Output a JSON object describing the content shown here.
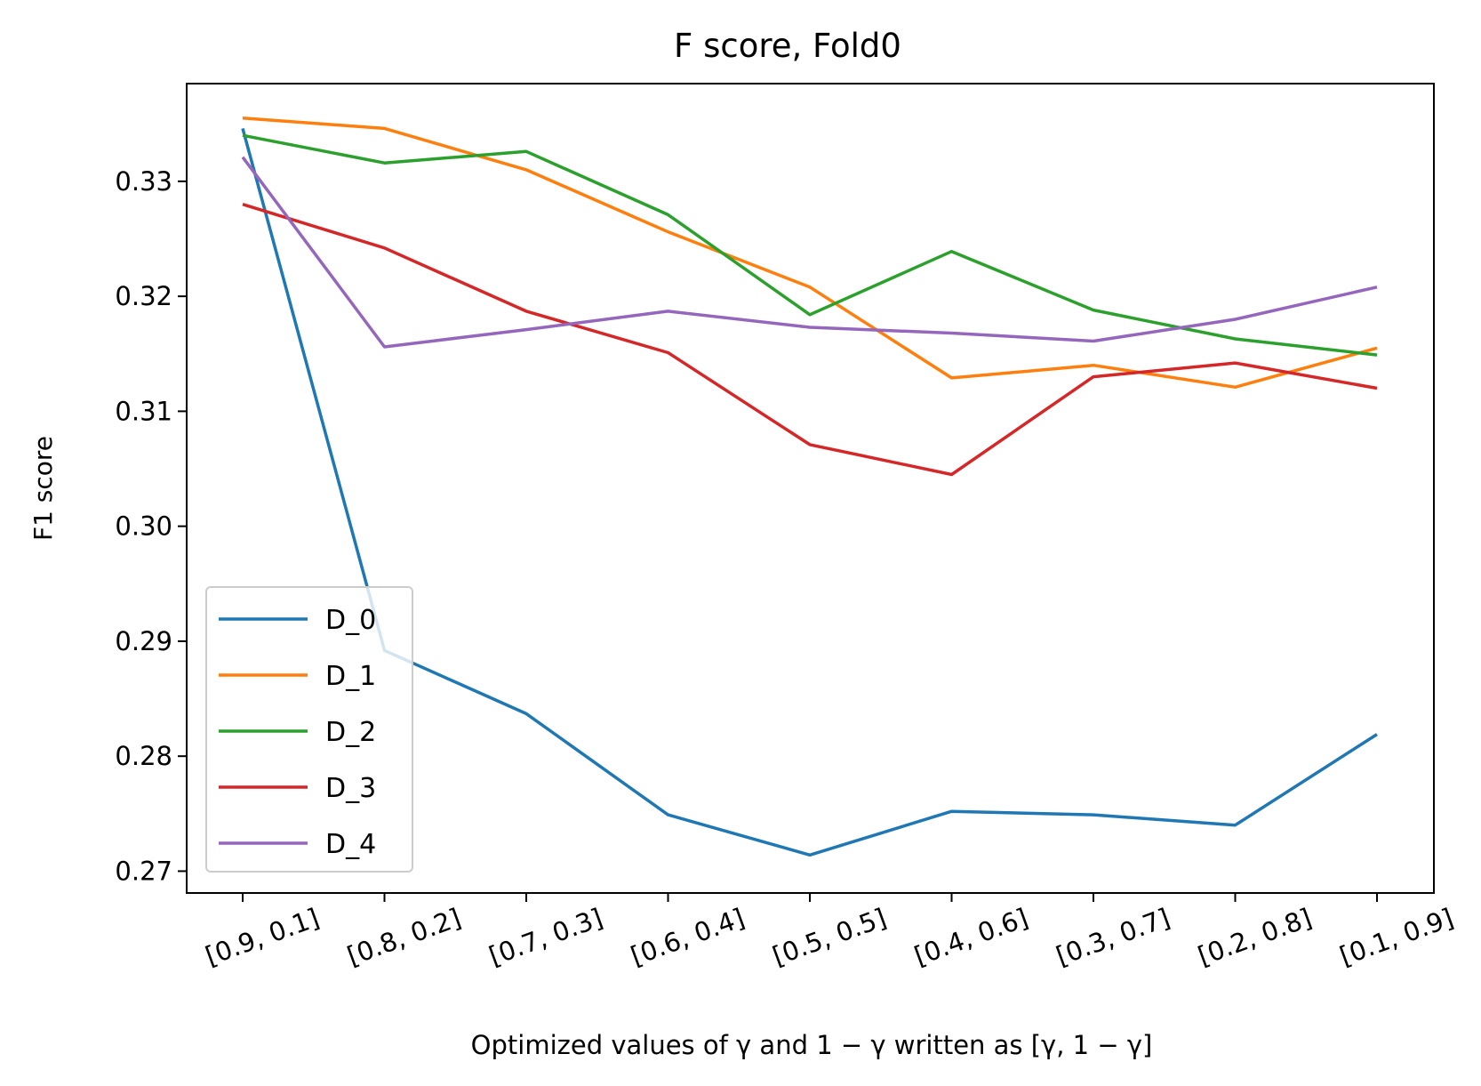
{
  "chart_data": {
    "type": "line",
    "title": "F score, Fold0",
    "xlabel": "Optimized values of γ and 1 − γ written as [γ, 1 − γ]",
    "ylabel": "F1 score",
    "categories": [
      "[0.9, 0.1]",
      "[0.8, 0.2]",
      "[0.7, 0.3]",
      "[0.6, 0.4]",
      "[0.5, 0.5]",
      "[0.4, 0.6]",
      "[0.3, 0.7]",
      "[0.2, 0.8]",
      "[0.1, 0.9]"
    ],
    "yticks": [
      "0.27",
      "0.28",
      "0.29",
      "0.30",
      "0.31",
      "0.32",
      "0.33"
    ],
    "ylim": [
      0.2681,
      0.3385
    ],
    "grid": false,
    "legend_position": "lower-left",
    "series": [
      {
        "name": "D_0",
        "color": "#1f77b4",
        "values": [
          0.3346,
          0.2892,
          0.2837,
          0.2749,
          0.2714,
          0.2752,
          0.2749,
          0.274,
          0.2819
        ]
      },
      {
        "name": "D_1",
        "color": "#ff7f0e",
        "values": [
          0.3355,
          0.3346,
          0.331,
          0.3256,
          0.3208,
          0.3129,
          0.314,
          0.3121,
          0.3155
        ]
      },
      {
        "name": "D_2",
        "color": "#2ca02c",
        "values": [
          0.334,
          0.3316,
          0.3326,
          0.3271,
          0.3184,
          0.3239,
          0.3188,
          0.3163,
          0.3149
        ]
      },
      {
        "name": "D_3",
        "color": "#d62728",
        "values": [
          0.328,
          0.3242,
          0.3187,
          0.3151,
          0.3071,
          0.3045,
          0.313,
          0.3142,
          0.312
        ]
      },
      {
        "name": "D_4",
        "color": "#9467bd",
        "values": [
          0.3321,
          0.3156,
          0.3171,
          0.3187,
          0.3173,
          0.3168,
          0.3161,
          0.318,
          0.3208
        ]
      }
    ]
  }
}
